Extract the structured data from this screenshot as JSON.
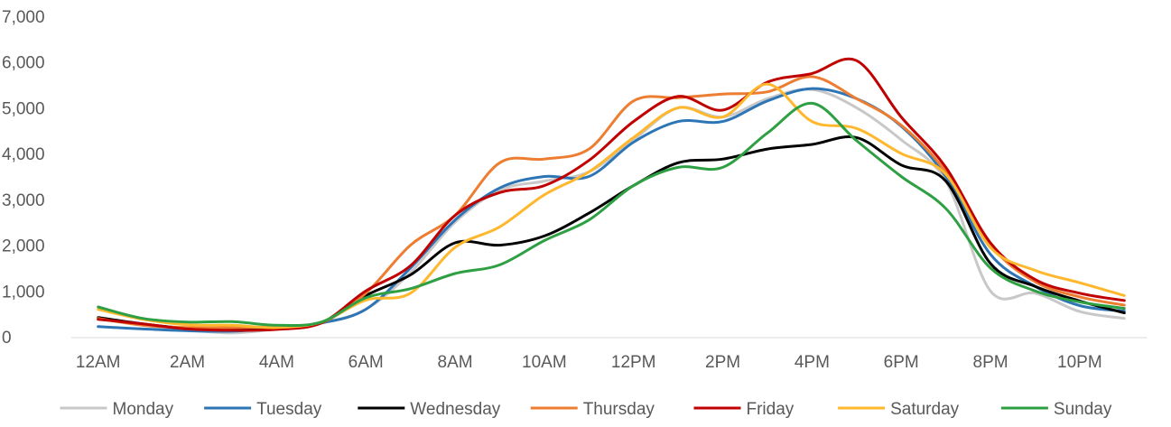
{
  "chart_data": {
    "type": "line",
    "title": "",
    "xlabel": "",
    "ylabel": "",
    "ylim": [
      0,
      7000
    ],
    "yticks": [
      0,
      1000,
      2000,
      3000,
      4000,
      5000,
      6000,
      7000
    ],
    "ytick_labels": [
      "0",
      "1,000",
      "2,000",
      "3,000",
      "4,000",
      "5,000",
      "6,000",
      "7,000"
    ],
    "x": [
      "12AM",
      "1AM",
      "2AM",
      "3AM",
      "4AM",
      "5AM",
      "6AM",
      "7AM",
      "8AM",
      "9AM",
      "10AM",
      "11AM",
      "12PM",
      "1PM",
      "2PM",
      "3PM",
      "4PM",
      "5PM",
      "6PM",
      "7PM",
      "8PM",
      "9PM",
      "10PM",
      "11PM"
    ],
    "xtick_labels": [
      "12AM",
      "2AM",
      "4AM",
      "6AM",
      "8AM",
      "10AM",
      "12PM",
      "2PM",
      "4PM",
      "6PM",
      "8PM",
      "10PM"
    ],
    "grid": false,
    "legend_position": "bottom",
    "series": [
      {
        "name": "Monday",
        "color": "#c8c8c8",
        "values": [
          400,
          250,
          150,
          80,
          170,
          300,
          600,
          1400,
          2500,
          3200,
          3400,
          3600,
          4300,
          5000,
          4800,
          5200,
          5400,
          5000,
          4300,
          3400,
          1000,
          950,
          550,
          400
        ]
      },
      {
        "name": "Tuesday",
        "color": "#2e75b6",
        "values": [
          220,
          170,
          130,
          120,
          190,
          300,
          600,
          1500,
          2550,
          3250,
          3500,
          3500,
          4250,
          4700,
          4700,
          5150,
          5420,
          5200,
          4600,
          3500,
          1800,
          1100,
          680,
          560
        ]
      },
      {
        "name": "Wednesday",
        "color": "#000000",
        "values": [
          420,
          280,
          180,
          150,
          170,
          300,
          900,
          1350,
          2050,
          2000,
          2200,
          2700,
          3300,
          3800,
          3880,
          4100,
          4200,
          4350,
          3750,
          3400,
          1600,
          1100,
          780,
          520
        ]
      },
      {
        "name": "Thursday",
        "color": "#ed7d31",
        "values": [
          400,
          250,
          200,
          200,
          220,
          300,
          950,
          2000,
          2650,
          3800,
          3880,
          4100,
          5150,
          5220,
          5300,
          5350,
          5680,
          5200,
          4620,
          3600,
          2000,
          1200,
          870,
          690
        ]
      },
      {
        "name": "Friday",
        "color": "#c00000",
        "values": [
          380,
          280,
          170,
          140,
          160,
          300,
          1000,
          1550,
          2650,
          3150,
          3300,
          3850,
          4700,
          5250,
          4950,
          5560,
          5750,
          6030,
          4800,
          3700,
          2050,
          1250,
          950,
          790
        ]
      },
      {
        "name": "Saturday",
        "color": "#ffb82e",
        "values": [
          600,
          380,
          260,
          250,
          200,
          320,
          800,
          950,
          1950,
          2400,
          3100,
          3600,
          4350,
          5000,
          4800,
          5520,
          4700,
          4550,
          4000,
          3550,
          1950,
          1450,
          1180,
          900
        ]
      },
      {
        "name": "Sunday",
        "color": "#2ea043",
        "values": [
          650,
          400,
          320,
          330,
          250,
          320,
          850,
          1050,
          1380,
          1570,
          2100,
          2550,
          3300,
          3700,
          3700,
          4450,
          5100,
          4280,
          3500,
          2800,
          1500,
          1000,
          760,
          620
        ]
      }
    ]
  }
}
